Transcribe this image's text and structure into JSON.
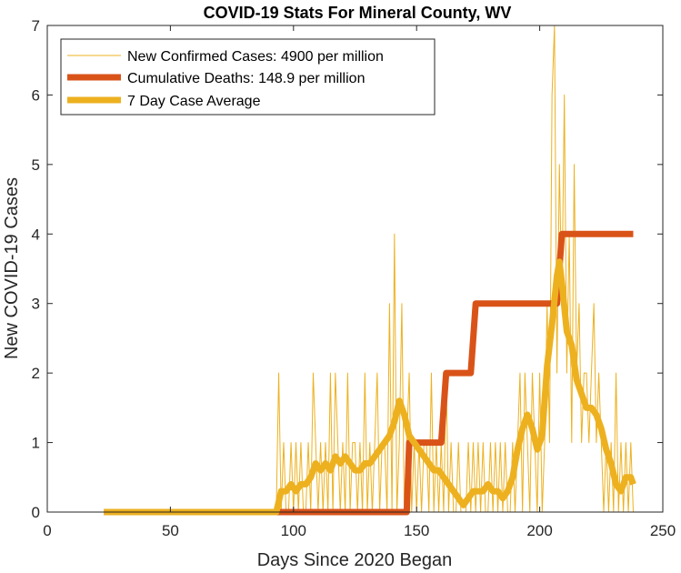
{
  "chart_data": {
    "type": "line",
    "title": "COVID-19 Stats For Mineral County, WV",
    "xlabel": "Days Since 2020 Began",
    "ylabel": "New COVID-19 Cases",
    "xlim": [
      0,
      250
    ],
    "ylim": [
      0,
      7
    ],
    "xticks": [
      0,
      50,
      100,
      150,
      200,
      250
    ],
    "yticks": [
      0,
      1,
      2,
      3,
      4,
      5,
      6,
      7
    ],
    "grid": false,
    "legend_position": "top-left",
    "colors": {
      "new_cases": "#EDB120",
      "deaths": "#D95319",
      "avg": "#EDB120",
      "axis": "#262626"
    },
    "series": [
      {
        "name": "New Confirmed Cases: 4900 per million",
        "style": "thin",
        "x": [
          23,
          93,
          94,
          95,
          96,
          97,
          98,
          99,
          100,
          101,
          102,
          103,
          104,
          105,
          106,
          107,
          108,
          109,
          110,
          111,
          112,
          113,
          114,
          115,
          116,
          117,
          118,
          119,
          120,
          121,
          122,
          123,
          124,
          125,
          126,
          127,
          128,
          129,
          130,
          131,
          132,
          133,
          134,
          135,
          136,
          137,
          138,
          139,
          140,
          141,
          142,
          143,
          144,
          145,
          146,
          147,
          148,
          149,
          150,
          151,
          152,
          153,
          154,
          155,
          156,
          157,
          158,
          159,
          160,
          161,
          162,
          163,
          164,
          165,
          166,
          167,
          168,
          169,
          170,
          171,
          172,
          173,
          174,
          175,
          176,
          177,
          178,
          179,
          180,
          181,
          182,
          183,
          184,
          185,
          186,
          187,
          188,
          189,
          190,
          191,
          192,
          193,
          194,
          195,
          196,
          197,
          198,
          199,
          200,
          201,
          202,
          203,
          204,
          205,
          206,
          207,
          208,
          209,
          210,
          211,
          212,
          213,
          214,
          215,
          216,
          217,
          218,
          219,
          220,
          221,
          222,
          223,
          224,
          225,
          226,
          227,
          228,
          229,
          230,
          231,
          232,
          233,
          234,
          235,
          236,
          237,
          238
        ],
        "y": [
          0,
          0,
          2,
          0,
          1,
          0,
          0,
          1,
          0,
          1,
          0,
          1,
          0,
          0,
          1,
          0,
          2,
          1,
          0,
          1,
          0,
          1,
          0,
          2,
          0,
          2,
          1,
          0,
          1,
          0,
          2,
          0,
          1,
          1,
          0,
          1,
          0,
          2,
          0,
          1,
          0,
          1,
          2,
          0,
          1,
          1,
          0,
          3,
          0,
          4,
          0,
          1,
          3,
          0,
          1,
          2,
          0,
          1,
          0,
          1,
          0,
          1,
          1,
          0,
          2,
          0,
          1,
          0,
          1,
          0,
          2,
          0,
          1,
          0,
          0,
          1,
          0,
          0,
          0,
          1,
          0,
          1,
          0,
          1,
          0,
          1,
          0,
          0,
          1,
          0,
          1,
          0,
          1,
          0,
          1,
          0,
          0,
          1,
          0,
          1,
          2,
          0,
          2,
          1,
          0,
          2,
          1,
          0,
          2,
          0,
          1,
          3,
          1,
          6,
          7,
          2,
          5,
          3,
          6,
          2,
          4,
          1,
          5,
          2,
          3,
          1,
          2,
          2,
          1,
          2,
          3,
          1,
          2,
          1,
          0,
          1,
          0,
          1,
          0,
          2,
          0,
          1,
          0,
          1,
          0,
          1,
          0
        ]
      },
      {
        "name": "Cumulative Deaths: 148.9 per million",
        "style": "thick-step",
        "x": [
          23,
          146,
          147,
          160,
          162,
          172,
          174,
          207,
          209,
          238
        ],
        "y": [
          0,
          0,
          1,
          1,
          2,
          2,
          3,
          3,
          4,
          4
        ]
      },
      {
        "name": "7 Day Case Average",
        "style": "thick",
        "x": [
          23,
          93,
          95,
          97,
          99,
          101,
          103,
          105,
          107,
          109,
          111,
          113,
          115,
          117,
          119,
          121,
          123,
          125,
          127,
          129,
          131,
          133,
          135,
          137,
          139,
          141,
          143,
          145,
          147,
          149,
          151,
          153,
          155,
          157,
          159,
          161,
          163,
          165,
          167,
          169,
          171,
          173,
          175,
          177,
          179,
          181,
          183,
          185,
          187,
          189,
          191,
          193,
          195,
          197,
          199,
          201,
          203,
          205,
          207,
          208,
          209,
          211,
          213,
          215,
          217,
          219,
          221,
          223,
          225,
          227,
          229,
          231,
          233,
          235,
          237,
          238
        ],
        "y": [
          0,
          0,
          0.3,
          0.3,
          0.4,
          0.3,
          0.4,
          0.4,
          0.5,
          0.7,
          0.6,
          0.7,
          0.6,
          0.8,
          0.7,
          0.8,
          0.7,
          0.6,
          0.6,
          0.7,
          0.7,
          0.8,
          0.9,
          1.0,
          1.1,
          1.3,
          1.6,
          1.4,
          1.1,
          1.0,
          0.9,
          0.8,
          0.7,
          0.6,
          0.6,
          0.5,
          0.4,
          0.3,
          0.2,
          0.1,
          0.2,
          0.3,
          0.3,
          0.3,
          0.4,
          0.3,
          0.3,
          0.2,
          0.3,
          0.5,
          0.9,
          1.2,
          1.4,
          1.2,
          0.9,
          1.1,
          2.1,
          2.7,
          3.4,
          3.6,
          3.3,
          2.6,
          2.4,
          1.9,
          1.7,
          1.5,
          1.5,
          1.4,
          1.2,
          0.9,
          0.7,
          0.4,
          0.3,
          0.5,
          0.5,
          0.4
        ]
      }
    ]
  }
}
